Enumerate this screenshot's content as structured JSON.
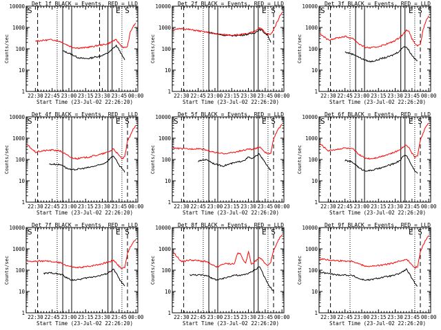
{
  "figure": {
    "x_tick_labels": [
      "22:30",
      "22:45",
      "23:00",
      "23:15",
      "23:30",
      "23:45",
      "00:00"
    ],
    "y_tick_labels": [
      "1",
      "10",
      "100",
      "1000",
      "10000"
    ],
    "ylabel": "Counts/sec",
    "xlabel": "Start Time (23-Jul-02 22:26:20)",
    "title_suffix": " BLACK = Events, RED = LLD",
    "colors": {
      "events": "#000000",
      "lld": "#ff0000"
    }
  },
  "chart_data": [
    {
      "type": "line",
      "title": "Det 1f BLACK = Events, RED = LLD",
      "xlabel": "Start Time (23-Jul-02 22:26:20)",
      "ylabel": "Counts/sec",
      "y_scale": "log",
      "xlim": [
        -3.3,
        36.7
      ],
      "ylim": [
        1,
        10000
      ],
      "corner_labels": {
        "left": "S",
        "right": "E S"
      },
      "dashed_lines": [
        0.8,
        23
      ],
      "dotted_lines": [
        7.8,
        31
      ],
      "solid_lines": [
        9.8,
        13,
        26,
        27.5
      ],
      "series": [
        {
          "name": "Events",
          "x": [
            9.8,
            11,
            13,
            15,
            17,
            19,
            21,
            23,
            25,
            26,
            27,
            28,
            29,
            30,
            31,
            32
          ],
          "values": [
            80,
            70,
            55,
            40,
            35,
            35,
            40,
            45,
            55,
            65,
            80,
            110,
            140,
            90,
            50,
            30
          ]
        },
        {
          "name": "LLD",
          "x": [
            0,
            3,
            6,
            9,
            11,
            13,
            15,
            17,
            19,
            21,
            23,
            25,
            27,
            28,
            29,
            30,
            31,
            32,
            33,
            34,
            35,
            36
          ],
          "values": [
            230,
            250,
            270,
            220,
            160,
            120,
            110,
            110,
            120,
            130,
            150,
            160,
            200,
            240,
            260,
            180,
            130,
            110,
            130,
            600,
            1100,
            1600
          ]
        }
      ]
    },
    {
      "type": "line",
      "title": "Det 2f BLACK = Events, RED = LLD",
      "xlabel": "Start Time (23-Jul-02 22:26:20)",
      "ylabel": "Counts/sec",
      "y_scale": "log",
      "xlim": [
        -3.3,
        36.7
      ],
      "ylim": [
        1,
        10000
      ],
      "corner_labels": {
        "left": "",
        "right": "E S"
      },
      "dashed_lines": [
        0.8,
        33
      ],
      "dotted_lines": [
        7.8,
        31
      ],
      "solid_lines": [
        9.8,
        13,
        26,
        27.5
      ],
      "series": [
        {
          "name": "Events",
          "x": [
            9.8,
            12,
            15,
            18,
            21,
            24,
            26,
            27,
            28,
            29,
            30,
            31,
            32
          ],
          "values": [
            600,
            520,
            440,
            420,
            430,
            480,
            550,
            650,
            800,
            700,
            520,
            420,
            200
          ]
        },
        {
          "name": "LLD",
          "x": [
            -3,
            0,
            3,
            6,
            9,
            12,
            15,
            18,
            21,
            24,
            26,
            27,
            28,
            29,
            30,
            31,
            32,
            33,
            34,
            35,
            36
          ],
          "values": [
            750,
            900,
            800,
            700,
            600,
            500,
            460,
            440,
            460,
            520,
            640,
            800,
            1000,
            800,
            550,
            480,
            470,
            800,
            1500,
            3000,
            5000
          ]
        }
      ]
    },
    {
      "type": "line",
      "title": "Det 3f BLACK = Events, RED = LLD",
      "xlabel": "Start Time (23-Jul-02 22:26:20)",
      "ylabel": "Counts/sec",
      "y_scale": "log",
      "xlim": [
        -3.3,
        36.7
      ],
      "ylim": [
        1,
        10000
      ],
      "corner_labels": {
        "left": "S",
        "right": "E S"
      },
      "dashed_lines": [
        0.8,
        33
      ],
      "dotted_lines": [
        7.8,
        31
      ],
      "solid_lines": [
        9.8,
        13,
        26,
        27.5
      ],
      "series": [
        {
          "name": "Events",
          "x": [
            6,
            8,
            9.8,
            11,
            13,
            15,
            17,
            19,
            21,
            23,
            25,
            26,
            27,
            28,
            29,
            30,
            31,
            32
          ],
          "values": [
            70,
            60,
            50,
            40,
            30,
            25,
            28,
            35,
            40,
            50,
            70,
            90,
            130,
            120,
            80,
            50,
            35,
            28
          ]
        },
        {
          "name": "LLD",
          "x": [
            -3,
            0,
            3,
            6,
            9,
            11,
            13,
            15,
            17,
            19,
            21,
            23,
            25,
            27,
            28,
            29,
            30,
            31,
            32,
            33,
            34,
            35,
            36
          ],
          "values": [
            500,
            260,
            320,
            380,
            300,
            170,
            120,
            110,
            120,
            140,
            170,
            210,
            300,
            500,
            800,
            600,
            300,
            180,
            140,
            150,
            800,
            2000,
            3500
          ]
        }
      ]
    },
    {
      "type": "line",
      "title": "Det 4f BLACK = Events, RED = LLD",
      "xlabel": "Start Time (23-Jul-02 22:26:20)",
      "ylabel": "Counts/sec",
      "y_scale": "log",
      "xlim": [
        -3.3,
        36.7
      ],
      "ylim": [
        1,
        10000
      ],
      "corner_labels": {
        "left": "S",
        "right": "E S"
      },
      "dashed_lines": [
        0.8,
        33
      ],
      "dotted_lines": [
        7.8,
        31
      ],
      "solid_lines": [
        9.8,
        13,
        26,
        27.5
      ],
      "series": [
        {
          "name": "Events",
          "x": [
            5,
            7,
            9.8,
            11,
            13,
            15,
            17,
            19,
            21,
            23,
            25,
            26,
            27,
            28,
            29,
            30,
            31,
            32
          ],
          "values": [
            60,
            60,
            55,
            40,
            32,
            35,
            38,
            42,
            48,
            55,
            70,
            90,
            120,
            150,
            90,
            50,
            40,
            25
          ]
        },
        {
          "name": "LLD",
          "x": [
            -3,
            0,
            3,
            6,
            9,
            11,
            13,
            15,
            17,
            19,
            21,
            23,
            25,
            27,
            28,
            29,
            30,
            31,
            32,
            33,
            34,
            35,
            36
          ],
          "values": [
            500,
            220,
            260,
            280,
            250,
            170,
            120,
            110,
            120,
            130,
            150,
            170,
            200,
            260,
            320,
            220,
            150,
            110,
            130,
            700,
            1400,
            2500,
            4000
          ]
        }
      ]
    },
    {
      "type": "line",
      "title": "Det 5f BLACK = Events, RED = LLD",
      "xlabel": "Start Time (23-Jul-02 22:26:20)",
      "ylabel": "Counts/sec",
      "y_scale": "log",
      "xlim": [
        -3.3,
        36.7
      ],
      "ylim": [
        1,
        10000
      ],
      "corner_labels": {
        "left": "S",
        "right": "E S"
      },
      "dashed_lines": [
        0.8,
        33
      ],
      "dotted_lines": [
        7.8,
        31
      ],
      "solid_lines": [
        9.8,
        13,
        26,
        27.5
      ],
      "series": [
        {
          "name": "Events",
          "x": [
            6,
            8,
            9.8,
            11,
            13,
            15,
            17,
            19,
            21,
            23,
            24,
            25,
            26,
            27,
            28,
            29,
            30,
            31,
            32
          ],
          "values": [
            80,
            100,
            90,
            70,
            55,
            50,
            60,
            70,
            80,
            100,
            130,
            110,
            120,
            160,
            180,
            110,
            70,
            45,
            30
          ]
        },
        {
          "name": "LLD",
          "x": [
            -3,
            0,
            3,
            6,
            9,
            11,
            13,
            15,
            17,
            19,
            21,
            23,
            24,
            25,
            27,
            28,
            29,
            30,
            31,
            32,
            33,
            34,
            35,
            36
          ],
          "values": [
            350,
            320,
            310,
            330,
            280,
            230,
            200,
            190,
            200,
            220,
            250,
            280,
            320,
            290,
            330,
            400,
            300,
            220,
            180,
            200,
            900,
            1800,
            3000,
            4500
          ]
        }
      ]
    },
    {
      "type": "line",
      "title": "Det 6f BLACK = Events, RED = LLD",
      "xlabel": "Start Time (23-Jul-02 22:26:20)",
      "ylabel": "Counts/sec",
      "y_scale": "log",
      "xlim": [
        -3.3,
        36.7
      ],
      "ylim": [
        1,
        10000
      ],
      "corner_labels": {
        "left": "S",
        "right": "E S"
      },
      "dashed_lines": [
        0.8,
        33
      ],
      "dotted_lines": [
        7.8,
        31
      ],
      "solid_lines": [
        9.8,
        13,
        26,
        27.5
      ],
      "series": [
        {
          "name": "Events",
          "x": [
            6,
            8,
            9.8,
            11,
            13,
            15,
            17,
            19,
            21,
            23,
            25,
            26,
            27,
            28,
            29,
            30,
            31,
            32
          ],
          "values": [
            90,
            80,
            60,
            40,
            30,
            30,
            35,
            40,
            50,
            60,
            80,
            100,
            150,
            160,
            90,
            50,
            30,
            22
          ]
        },
        {
          "name": "LLD",
          "x": [
            -3,
            0,
            3,
            6,
            9,
            11,
            13,
            15,
            17,
            19,
            21,
            23,
            25,
            27,
            28,
            29,
            30,
            31,
            32,
            33,
            34,
            35,
            36
          ],
          "values": [
            550,
            260,
            300,
            350,
            300,
            170,
            120,
            110,
            120,
            140,
            170,
            200,
            260,
            400,
            500,
            350,
            200,
            130,
            150,
            800,
            1800,
            3500,
            5000
          ]
        }
      ]
    },
    {
      "type": "line",
      "title": "Det 7f BLACK = Events, RED = LLD",
      "xlabel": "Start Time (23-Jul-02 22:26:20)",
      "ylabel": "Counts/sec",
      "y_scale": "log",
      "xlim": [
        -3.3,
        36.7
      ],
      "ylim": [
        1,
        10000
      ],
      "corner_labels": {
        "left": "S",
        "right": "E S"
      },
      "dashed_lines": [
        0.8,
        33
      ],
      "dotted_lines": [
        7.8,
        31
      ],
      "solid_lines": [
        9.8,
        13,
        26,
        27.5
      ],
      "series": [
        {
          "name": "Events",
          "x": [
            3,
            6,
            9.8,
            11,
            13,
            15,
            17,
            19,
            21,
            23,
            25,
            26,
            27,
            28,
            29,
            30,
            31,
            32
          ],
          "values": [
            70,
            75,
            60,
            45,
            35,
            35,
            40,
            45,
            50,
            55,
            65,
            75,
            90,
            110,
            70,
            40,
            25,
            18
          ]
        },
        {
          "name": "LLD",
          "x": [
            -3,
            0,
            3,
            6,
            9,
            11,
            13,
            15,
            17,
            19,
            21,
            23,
            25,
            27,
            28,
            29,
            30,
            31,
            32,
            33,
            34,
            35,
            36
          ],
          "values": [
            250,
            260,
            270,
            250,
            220,
            170,
            140,
            130,
            140,
            150,
            170,
            190,
            220,
            260,
            300,
            220,
            150,
            120,
            140,
            600,
            1200,
            2000,
            2800
          ]
        }
      ]
    },
    {
      "type": "line",
      "title": "Det 8f BLACK = Events, RED = LLD",
      "xlabel": "Start Time (23-Jul-02 22:26:20)",
      "ylabel": "Counts/sec",
      "y_scale": "log",
      "xlim": [
        -3.3,
        36.7
      ],
      "ylim": [
        1,
        10000
      ],
      "corner_labels": {
        "left": "",
        "right": "E S"
      },
      "dashed_lines": [
        0.8,
        33
      ],
      "dotted_lines": [
        7.8,
        31
      ],
      "solid_lines": [
        9.8,
        13,
        26,
        27.5
      ],
      "series": [
        {
          "name": "Events",
          "x": [
            3,
            6,
            9.8,
            11,
            13,
            15,
            17,
            19,
            21,
            23,
            25,
            26,
            27,
            28,
            29,
            30,
            31,
            32,
            33
          ],
          "values": [
            60,
            60,
            55,
            40,
            35,
            40,
            50,
            60,
            55,
            65,
            80,
            100,
            120,
            150,
            80,
            40,
            22,
            15,
            10
          ]
        },
        {
          "name": "LLD",
          "x": [
            -3,
            0,
            3,
            6,
            9,
            11,
            13,
            15,
            16,
            17,
            19,
            20,
            21,
            23,
            24,
            25,
            27,
            28,
            29,
            30,
            31,
            32,
            33,
            34,
            35,
            36
          ],
          "values": [
            700,
            250,
            300,
            280,
            250,
            170,
            140,
            200,
            200,
            200,
            200,
            600,
            600,
            200,
            800,
            180,
            300,
            400,
            300,
            200,
            160,
            250,
            800,
            1500,
            3000,
            4500
          ]
        }
      ]
    },
    {
      "type": "line",
      "title": "Det 9f BLACK = Events, RED = LLD",
      "xlabel": "Start Time (23-Jul-02 22:26:20)",
      "ylabel": "Counts/sec",
      "y_scale": "log",
      "xlim": [
        -3.3,
        36.7
      ],
      "ylim": [
        1,
        10000
      ],
      "corner_labels": {
        "left": "",
        "right": "E S"
      },
      "dashed_lines": [
        0.8,
        33
      ],
      "dotted_lines": [
        7.8,
        31
      ],
      "solid_lines": [],
      "series": [
        {
          "name": "Events",
          "x": [
            -3,
            0,
            3,
            6,
            9,
            11,
            13,
            15,
            17,
            19,
            21,
            23,
            25,
            27,
            28,
            29,
            30,
            31,
            32
          ],
          "values": [
            80,
            70,
            60,
            60,
            55,
            40,
            35,
            35,
            40,
            45,
            50,
            55,
            65,
            90,
            110,
            70,
            40,
            25,
            18
          ]
        },
        {
          "name": "LLD",
          "x": [
            -3,
            0,
            3,
            6,
            9,
            11,
            13,
            15,
            17,
            19,
            21,
            23,
            25,
            27,
            28,
            29,
            30,
            31,
            32,
            33,
            34,
            35,
            36
          ],
          "values": [
            350,
            300,
            280,
            270,
            260,
            200,
            160,
            150,
            160,
            170,
            190,
            210,
            250,
            300,
            340,
            250,
            170,
            130,
            150,
            700,
            1500,
            2800,
            4200
          ]
        }
      ]
    }
  ]
}
